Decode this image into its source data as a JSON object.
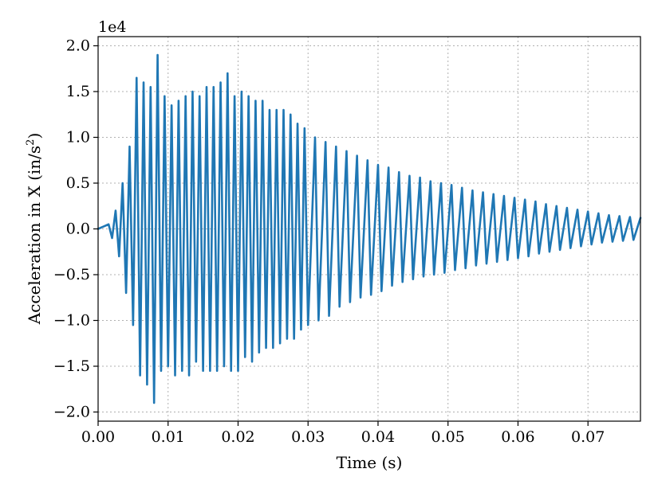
{
  "chart_data": {
    "type": "line",
    "title": "",
    "xlabel": "Time (s)",
    "ylabel_main": "Acceleration in X (in/s",
    "ylabel_sup": "2",
    "ylabel_tail": ")",
    "y_offset_label": "1e4",
    "xlim": [
      0.0,
      0.0775
    ],
    "ylim": [
      -2.1,
      2.1
    ],
    "grid": true,
    "x_ticks": [
      0.0,
      0.01,
      0.02,
      0.03,
      0.04,
      0.05,
      0.06,
      0.07
    ],
    "x_tick_labels": [
      "0.00",
      "0.01",
      "0.02",
      "0.03",
      "0.04",
      "0.05",
      "0.06",
      "0.07"
    ],
    "y_ticks": [
      2.0,
      1.5,
      1.0,
      0.5,
      0.0,
      -0.5,
      -1.0,
      -1.5,
      -2.0
    ],
    "y_tick_labels": [
      "2.0",
      "1.5",
      "1.0",
      "0.5",
      "0.0",
      "−0.5",
      "−1.0",
      "−1.5",
      "−2.0"
    ],
    "series": [
      {
        "color": "#1f77b4",
        "x": [
          0.0,
          0.0015,
          0.002,
          0.0025,
          0.003,
          0.0035,
          0.004,
          0.0045,
          0.005,
          0.0055,
          0.006,
          0.0065,
          0.007,
          0.0075,
          0.008,
          0.0085,
          0.009,
          0.0095,
          0.01,
          0.0105,
          0.011,
          0.0115,
          0.012,
          0.0125,
          0.013,
          0.0135,
          0.014,
          0.0145,
          0.015,
          0.0155,
          0.016,
          0.0165,
          0.017,
          0.0175,
          0.018,
          0.0185,
          0.019,
          0.0195,
          0.02,
          0.0205,
          0.021,
          0.0215,
          0.022,
          0.0225,
          0.023,
          0.0235,
          0.024,
          0.0245,
          0.025,
          0.0255,
          0.026,
          0.0265,
          0.027,
          0.0275,
          0.028,
          0.0285,
          0.029,
          0.0295,
          0.03,
          0.031,
          0.0315,
          0.0325,
          0.033,
          0.034,
          0.0345,
          0.0355,
          0.036,
          0.037,
          0.0375,
          0.0385,
          0.039,
          0.04,
          0.0405,
          0.0415,
          0.042,
          0.043,
          0.0435,
          0.0445,
          0.045,
          0.046,
          0.0465,
          0.0475,
          0.048,
          0.049,
          0.0495,
          0.0505,
          0.051,
          0.052,
          0.0525,
          0.0535,
          0.054,
          0.055,
          0.0555,
          0.0565,
          0.057,
          0.058,
          0.0585,
          0.0595,
          0.06,
          0.061,
          0.0615,
          0.0625,
          0.063,
          0.064,
          0.0645,
          0.0655,
          0.066,
          0.067,
          0.0675,
          0.0685,
          0.069,
          0.07,
          0.0705,
          0.0715,
          0.072,
          0.073,
          0.0735,
          0.0745,
          0.075,
          0.076,
          0.0765,
          0.0775
        ],
        "values": [
          0.0,
          0.05,
          -0.1,
          0.2,
          -0.3,
          0.5,
          -0.7,
          0.9,
          -1.05,
          1.65,
          -1.6,
          1.6,
          -1.7,
          1.55,
          -1.9,
          1.9,
          -1.55,
          1.45,
          -1.5,
          1.35,
          -1.6,
          1.4,
          -1.55,
          1.45,
          -1.6,
          1.5,
          -1.45,
          1.45,
          -1.55,
          1.55,
          -1.55,
          1.55,
          -1.55,
          1.6,
          -1.5,
          1.7,
          -1.55,
          1.45,
          -1.55,
          1.5,
          -1.4,
          1.45,
          -1.45,
          1.4,
          -1.35,
          1.4,
          -1.3,
          1.3,
          -1.3,
          1.3,
          -1.25,
          1.3,
          -1.2,
          1.25,
          -1.2,
          1.15,
          -1.1,
          1.1,
          -1.05,
          1.0,
          -1.0,
          0.95,
          -0.95,
          0.9,
          -0.85,
          0.85,
          -0.8,
          0.8,
          -0.75,
          0.75,
          -0.72,
          0.7,
          -0.68,
          0.67,
          -0.62,
          0.62,
          -0.58,
          0.58,
          -0.55,
          0.56,
          -0.52,
          0.52,
          -0.5,
          0.5,
          -0.48,
          0.48,
          -0.45,
          0.45,
          -0.43,
          0.42,
          -0.4,
          0.4,
          -0.38,
          0.38,
          -0.36,
          0.36,
          -0.34,
          0.34,
          -0.32,
          0.32,
          -0.3,
          0.3,
          -0.27,
          0.27,
          -0.25,
          0.25,
          -0.23,
          0.23,
          -0.21,
          0.21,
          -0.19,
          0.19,
          -0.17,
          0.17,
          -0.15,
          0.15,
          -0.14,
          0.14,
          -0.13,
          0.13,
          -0.12,
          0.12
        ]
      }
    ]
  }
}
